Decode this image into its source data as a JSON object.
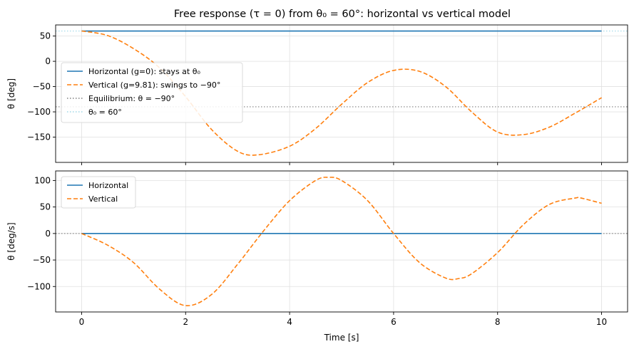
{
  "chart_data": [
    {
      "type": "line",
      "title": "Free response (τ = 0) from θ₀ = 60°: horizontal vs vertical model",
      "xlabel": "",
      "ylabel": "θ  [deg]",
      "xlim": [
        -0.5,
        10.5
      ],
      "ylim": [
        -200,
        72
      ],
      "xticks": [
        0,
        2,
        4,
        6,
        8,
        10
      ],
      "yticks": [
        50,
        0,
        -50,
        -100,
        -150
      ],
      "grid": true,
      "legend_position": "center-left",
      "series": [
        {
          "name": "Horizontal (g=0): stays at θ₀",
          "color": "#1f77b4",
          "style": "solid",
          "x": [
            0,
            10
          ],
          "y": [
            60,
            60
          ]
        },
        {
          "name": "Vertical (g=9.81): swings to −90°",
          "color": "#ff7f0e",
          "style": "dashed",
          "x": [
            0,
            0.5,
            1.0,
            1.5,
            2.0,
            2.5,
            3.0,
            3.4,
            4.0,
            4.5,
            5.0,
            5.5,
            6.0,
            6.5,
            7.0,
            7.5,
            8.0,
            8.5,
            9.0,
            9.5,
            10.0
          ],
          "y": [
            60,
            51,
            25,
            -13,
            -70,
            -135,
            -178,
            -185,
            -168,
            -133,
            -85,
            -42,
            -18,
            -20,
            -50,
            -100,
            -140,
            -145,
            -130,
            -102,
            -72
          ]
        }
      ],
      "reference_lines": [
        {
          "name": "Equilibrium: θ = −90°",
          "y": -90,
          "color": "#808080",
          "style": "dotted"
        },
        {
          "name": "θ₀ = 60°",
          "y": 60,
          "color": "#9fd8e8",
          "style": "dotted"
        }
      ]
    },
    {
      "type": "line",
      "title": "",
      "xlabel": "Time [s]",
      "ylabel": "θ  [deg/s]",
      "xlim": [
        -0.5,
        10.5
      ],
      "ylim": [
        -148,
        118
      ],
      "xticks": [
        0,
        2,
        4,
        6,
        8,
        10
      ],
      "yticks": [
        100,
        50,
        0,
        -50,
        -100
      ],
      "grid": true,
      "legend_position": "top-left",
      "series": [
        {
          "name": "Horizontal",
          "color": "#1f77b4",
          "style": "solid",
          "x": [
            0,
            10
          ],
          "y": [
            0,
            0
          ]
        },
        {
          "name": "Vertical",
          "color": "#ff7f0e",
          "style": "dashed",
          "x": [
            0,
            0.5,
            1.0,
            1.5,
            2.0,
            2.5,
            3.0,
            3.5,
            4.0,
            4.5,
            4.75,
            5.0,
            5.5,
            6.0,
            6.5,
            7.0,
            7.25,
            7.5,
            8.0,
            8.5,
            9.0,
            9.5,
            9.6,
            10.0
          ],
          "y": [
            0,
            -22,
            -55,
            -105,
            -136,
            -115,
            -58,
            5,
            62,
            100,
            106,
            100,
            62,
            0,
            -55,
            -84,
            -85,
            -76,
            -36,
            17,
            55,
            67,
            67,
            57
          ]
        }
      ],
      "reference_lines": [
        {
          "y": 0,
          "color": "#808080",
          "style": "dotted"
        }
      ]
    }
  ]
}
